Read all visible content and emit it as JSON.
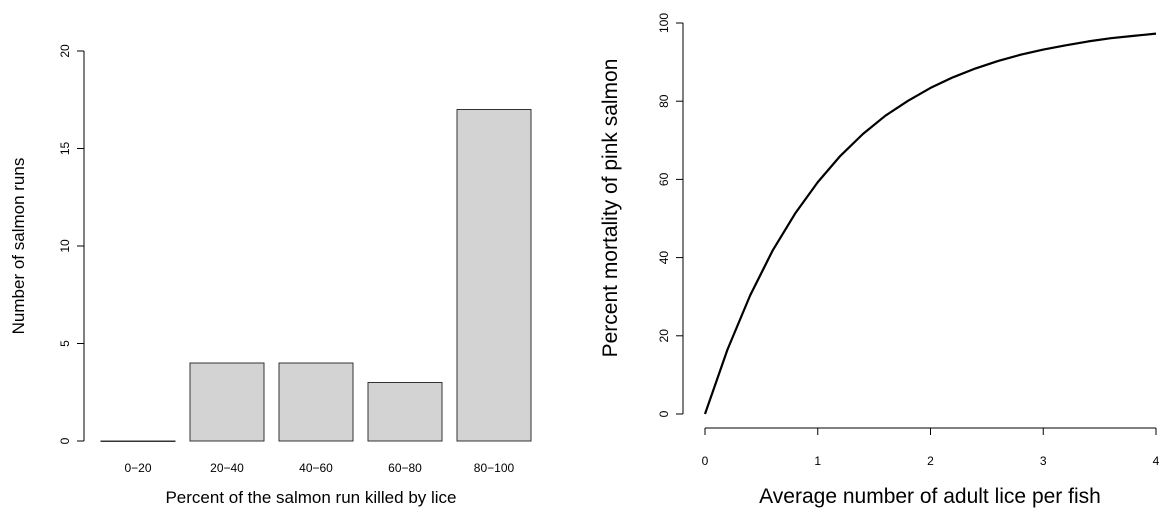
{
  "chart_data": [
    {
      "type": "bar",
      "categories": [
        "0−20",
        "20−40",
        "40−60",
        "60−80",
        "80−100"
      ],
      "values": [
        0,
        4,
        4,
        3,
        17
      ],
      "xlabel": "Percent of the salmon run killed by lice",
      "ylabel": "Number of salmon runs",
      "ylim": [
        0,
        20
      ],
      "yticks": [
        0,
        5,
        10,
        15,
        20
      ],
      "bar_color": "#d3d3d3",
      "grid": false,
      "legend": "none"
    },
    {
      "type": "line",
      "series": [
        {
          "x": [
            0,
            0.2,
            0.4,
            0.6,
            0.8,
            1.0,
            1.2,
            1.4,
            1.6,
            1.8,
            2.0,
            2.2,
            2.4,
            2.6,
            2.8,
            3.0,
            3.2,
            3.4,
            3.6,
            3.8,
            4.0
          ],
          "y": [
            0,
            16.5,
            30.3,
            41.8,
            51.3,
            59.3,
            66.0,
            71.6,
            76.3,
            80.1,
            83.4,
            86.1,
            88.4,
            90.3,
            91.9,
            93.2,
            94.3,
            95.3,
            96.1,
            96.7,
            97.3
          ]
        }
      ],
      "xlabel": "Average number of adult lice per fish",
      "ylabel": "Percent mortality of pink salmon",
      "xlim": [
        0,
        4
      ],
      "ylim": [
        0,
        100
      ],
      "xticks": [
        0,
        1,
        2,
        3,
        4
      ],
      "yticks": [
        0,
        20,
        40,
        60,
        80,
        100
      ],
      "line_color": "#000000",
      "grid": false,
      "legend": "none"
    }
  ]
}
